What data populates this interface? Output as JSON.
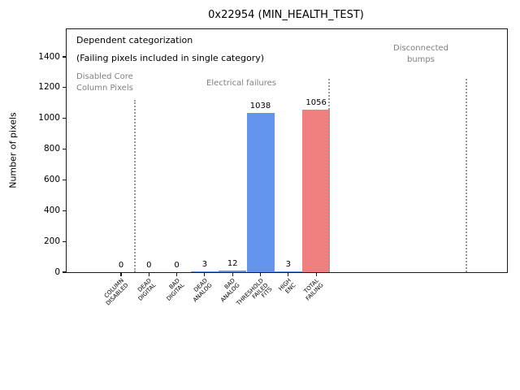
{
  "title": "0x22954 (MIN_HEALTH_TEST)",
  "ylabel": "Number of pixels",
  "annotations": {
    "dependent_line1": "Dependent categorization",
    "dependent_line2": "(Failing pixels included in single category)",
    "region_disabled": "Disabled Core\nColumn Pixels",
    "region_electrical": "Electrical failures",
    "region_disconnected": "Disconnected\nbumps"
  },
  "colors": {
    "bar_blue": "#6495ED",
    "bar_red": "#F08080",
    "annotation_gray": "#808080",
    "divider_gray": "#999999"
  },
  "chart_data": {
    "type": "bar",
    "title": "0x22954 (MIN_HEALTH_TEST)",
    "xlabel": "",
    "ylabel": "Number of pixels",
    "categories": [
      "COLUMN\nDISABLED",
      "DEAD\nDIGITAL",
      "BAD\nDIGITAL",
      "DEAD\nANALOG",
      "BAD\nANALOG",
      "THRESHOLD\nFAILED\nFITS",
      "HIGH\nENC",
      "TOTAL\nFAILING"
    ],
    "values": [
      0,
      0,
      0,
      3,
      12,
      1038,
      3,
      1056
    ],
    "value_labels": [
      "0",
      "0",
      "0",
      "3",
      "12",
      "1038",
      "3",
      "1056"
    ],
    "bar_colors": [
      "#6495ED",
      "#6495ED",
      "#6495ED",
      "#6495ED",
      "#6495ED",
      "#6495ED",
      "#6495ED",
      "#F08080"
    ],
    "yticks": [
      0,
      200,
      400,
      600,
      800,
      1000,
      1200,
      1400
    ],
    "ylim": [
      0,
      1580
    ],
    "grid": false,
    "legend": null,
    "regions": [
      {
        "label": "Disabled Core\nColumn Pixels",
        "categories": [
          "COLUMN DISABLED"
        ]
      },
      {
        "label": "Electrical failures",
        "categories": [
          "DEAD DIGITAL",
          "BAD DIGITAL",
          "DEAD ANALOG",
          "BAD ANALOG",
          "THRESHOLD FAILED FITS",
          "HIGH ENC",
          "TOTAL FAILING"
        ]
      },
      {
        "label": "Disconnected bumps",
        "categories": []
      }
    ],
    "divider_style": {
      "line": "dotted",
      "color": "#999999"
    }
  }
}
